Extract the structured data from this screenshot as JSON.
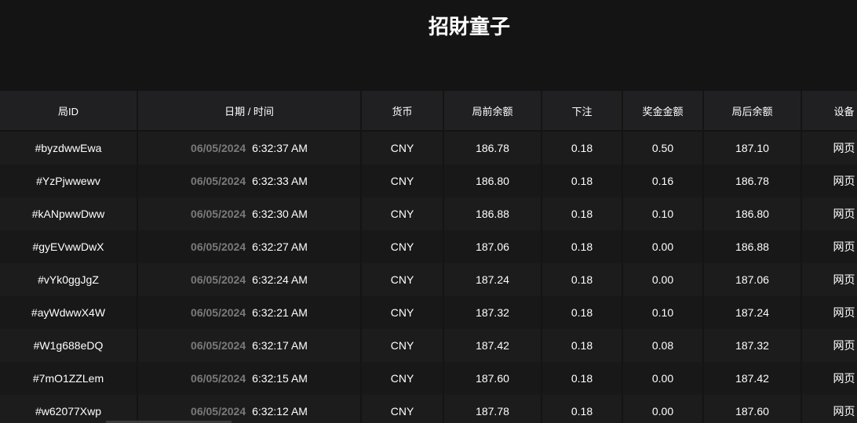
{
  "header": {
    "title": "招財童子"
  },
  "table": {
    "columns": [
      "局ID",
      "日期 / 时间",
      "货币",
      "局前余额",
      "下注",
      "奖金金额",
      "局后余额",
      "设备"
    ],
    "rows": [
      {
        "id": "#byzdwwEwa",
        "date": "06/05/2024",
        "time": "6:32:37 AM",
        "currency": "CNY",
        "before": "186.78",
        "bet": "0.18",
        "win": "0.50",
        "after": "187.10",
        "device": "网页"
      },
      {
        "id": "#YzPjwwewv",
        "date": "06/05/2024",
        "time": "6:32:33 AM",
        "currency": "CNY",
        "before": "186.80",
        "bet": "0.18",
        "win": "0.16",
        "after": "186.78",
        "device": "网页"
      },
      {
        "id": "#kANpwwDww",
        "date": "06/05/2024",
        "time": "6:32:30 AM",
        "currency": "CNY",
        "before": "186.88",
        "bet": "0.18",
        "win": "0.10",
        "after": "186.80",
        "device": "网页"
      },
      {
        "id": "#gyEVwwDwX",
        "date": "06/05/2024",
        "time": "6:32:27 AM",
        "currency": "CNY",
        "before": "187.06",
        "bet": "0.18",
        "win": "0.00",
        "after": "186.88",
        "device": "网页"
      },
      {
        "id": "#vYk0ggJgZ",
        "date": "06/05/2024",
        "time": "6:32:24 AM",
        "currency": "CNY",
        "before": "187.24",
        "bet": "0.18",
        "win": "0.00",
        "after": "187.06",
        "device": "网页"
      },
      {
        "id": "#ayWdwwX4W",
        "date": "06/05/2024",
        "time": "6:32:21 AM",
        "currency": "CNY",
        "before": "187.32",
        "bet": "0.18",
        "win": "0.10",
        "after": "187.24",
        "device": "网页"
      },
      {
        "id": "#W1g688eDQ",
        "date": "06/05/2024",
        "time": "6:32:17 AM",
        "currency": "CNY",
        "before": "187.42",
        "bet": "0.18",
        "win": "0.08",
        "after": "187.32",
        "device": "网页"
      },
      {
        "id": "#7mO1ZZLem",
        "date": "06/05/2024",
        "time": "6:32:15 AM",
        "currency": "CNY",
        "before": "187.60",
        "bet": "0.18",
        "win": "0.00",
        "after": "187.42",
        "device": "网页"
      },
      {
        "id": "#w62077Xwp",
        "date": "06/05/2024",
        "time": "6:32:12 AM",
        "currency": "CNY",
        "before": "187.78",
        "bet": "0.18",
        "win": "0.00",
        "after": "187.60",
        "device": "网页"
      }
    ]
  }
}
